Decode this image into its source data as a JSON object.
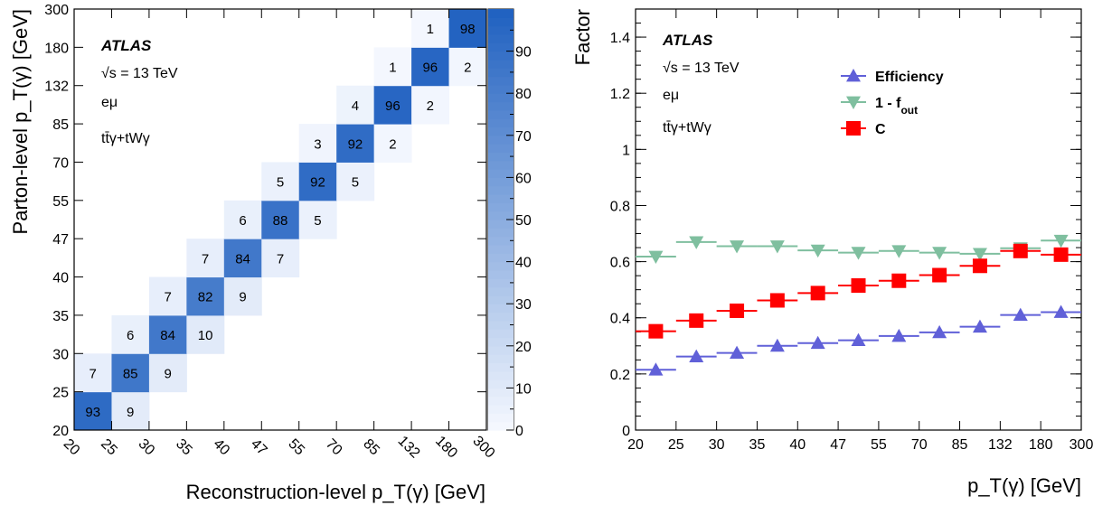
{
  "chart_data": [
    {
      "type": "heatmap",
      "bin_edges": [
        "20",
        "25",
        "30",
        "35",
        "40",
        "47",
        "55",
        "70",
        "85",
        "132",
        "180",
        "300"
      ],
      "xlabel": "Reconstruction-level p_T(γ) [GeV]",
      "ylabel": "Parton-level p_T(γ) [GeV]",
      "label_atlas": "ATLAS",
      "label_energy": "√s = 13 TeV",
      "label_channel": "eμ",
      "label_process": "tt̄γ+tWγ",
      "colorbar_ticks": [
        0,
        10,
        20,
        30,
        40,
        50,
        60,
        70,
        80,
        90
      ],
      "zlim": [
        0,
        100
      ],
      "cells": [
        {
          "x": 0,
          "y": 0,
          "v": 93
        },
        {
          "x": 1,
          "y": 0,
          "v": 9
        },
        {
          "x": 0,
          "y": 1,
          "v": 7
        },
        {
          "x": 1,
          "y": 1,
          "v": 85
        },
        {
          "x": 2,
          "y": 1,
          "v": 9
        },
        {
          "x": 1,
          "y": 2,
          "v": 6
        },
        {
          "x": 2,
          "y": 2,
          "v": 84
        },
        {
          "x": 3,
          "y": 2,
          "v": 10
        },
        {
          "x": 2,
          "y": 3,
          "v": 7
        },
        {
          "x": 3,
          "y": 3,
          "v": 82
        },
        {
          "x": 4,
          "y": 3,
          "v": 9
        },
        {
          "x": 3,
          "y": 4,
          "v": 7
        },
        {
          "x": 4,
          "y": 4,
          "v": 84
        },
        {
          "x": 5,
          "y": 4,
          "v": 7
        },
        {
          "x": 4,
          "y": 5,
          "v": 6
        },
        {
          "x": 5,
          "y": 5,
          "v": 88
        },
        {
          "x": 6,
          "y": 5,
          "v": 5
        },
        {
          "x": 5,
          "y": 6,
          "v": 5
        },
        {
          "x": 6,
          "y": 6,
          "v": 92
        },
        {
          "x": 7,
          "y": 6,
          "v": 5
        },
        {
          "x": 6,
          "y": 7,
          "v": 3
        },
        {
          "x": 7,
          "y": 7,
          "v": 92
        },
        {
          "x": 8,
          "y": 7,
          "v": 2
        },
        {
          "x": 7,
          "y": 8,
          "v": 4
        },
        {
          "x": 8,
          "y": 8,
          "v": 96
        },
        {
          "x": 9,
          "y": 8,
          "v": 2
        },
        {
          "x": 8,
          "y": 9,
          "v": 1
        },
        {
          "x": 9,
          "y": 9,
          "v": 96
        },
        {
          "x": 10,
          "y": 9,
          "v": 2
        },
        {
          "x": 9,
          "y": 10,
          "v": 1
        },
        {
          "x": 10,
          "y": 10,
          "v": 98
        }
      ]
    },
    {
      "type": "scatter",
      "bin_edges": [
        "20",
        "25",
        "30",
        "35",
        "40",
        "47",
        "55",
        "70",
        "85",
        "132",
        "180",
        "300"
      ],
      "xlabel": "p_T(γ) [GeV]",
      "ylabel": "Factor",
      "ylim": [
        0,
        1.5
      ],
      "yticks": [
        "0",
        "0.2",
        "0.4",
        "0.6",
        "0.8",
        "1",
        "1.2",
        "1.4"
      ],
      "label_atlas": "ATLAS",
      "label_energy": "√s = 13 TeV",
      "label_channel": "eμ",
      "label_process": "tt̄γ+tWγ",
      "legend_position": "top-right",
      "series": [
        {
          "name": "Efficiency",
          "color": "#6060d8",
          "marker": "triangle-up",
          "values": [
            0.215,
            0.262,
            0.275,
            0.3,
            0.31,
            0.32,
            0.335,
            0.348,
            0.368,
            0.41,
            0.42
          ]
        },
        {
          "name": "1 - f_out",
          "color": "#7fbf9f",
          "marker": "triangle-down",
          "values": [
            0.618,
            0.67,
            0.655,
            0.655,
            0.64,
            0.632,
            0.638,
            0.632,
            0.628,
            0.648,
            0.675
          ]
        },
        {
          "name": "C",
          "color": "#ff0000",
          "marker": "square",
          "values": [
            0.352,
            0.39,
            0.425,
            0.462,
            0.488,
            0.515,
            0.532,
            0.552,
            0.585,
            0.638,
            0.625
          ]
        }
      ]
    }
  ]
}
